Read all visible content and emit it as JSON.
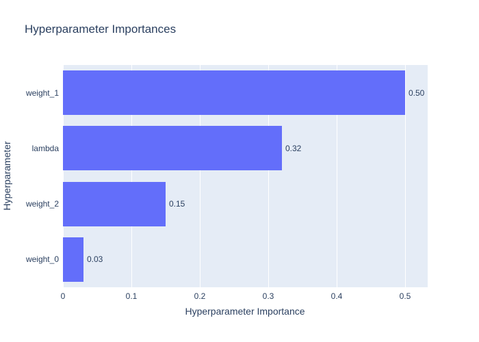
{
  "chart_data": {
    "type": "bar",
    "orientation": "horizontal",
    "title": "Hyperparameter Importances",
    "xlabel": "Hyperparameter Importance",
    "ylabel": "Hyperparameter",
    "categories": [
      "weight_1",
      "lambda",
      "weight_2",
      "weight_0"
    ],
    "values": [
      0.5,
      0.32,
      0.15,
      0.03
    ],
    "value_labels": [
      "0.50",
      "0.32",
      "0.15",
      "0.03"
    ],
    "x_ticks": [
      0,
      0.1,
      0.2,
      0.3,
      0.4,
      0.5
    ],
    "x_tick_labels": [
      "0",
      "0.1",
      "0.2",
      "0.3",
      "0.4",
      "0.5"
    ],
    "xlim": [
      0,
      0.533
    ],
    "grid": true,
    "legend_visible": false,
    "colors": {
      "bar": "#636efa",
      "plot_bg": "#e5ecf6",
      "grid": "#ffffff",
      "text": "#2a3f5f",
      "paper_bg": "#ffffff"
    }
  }
}
